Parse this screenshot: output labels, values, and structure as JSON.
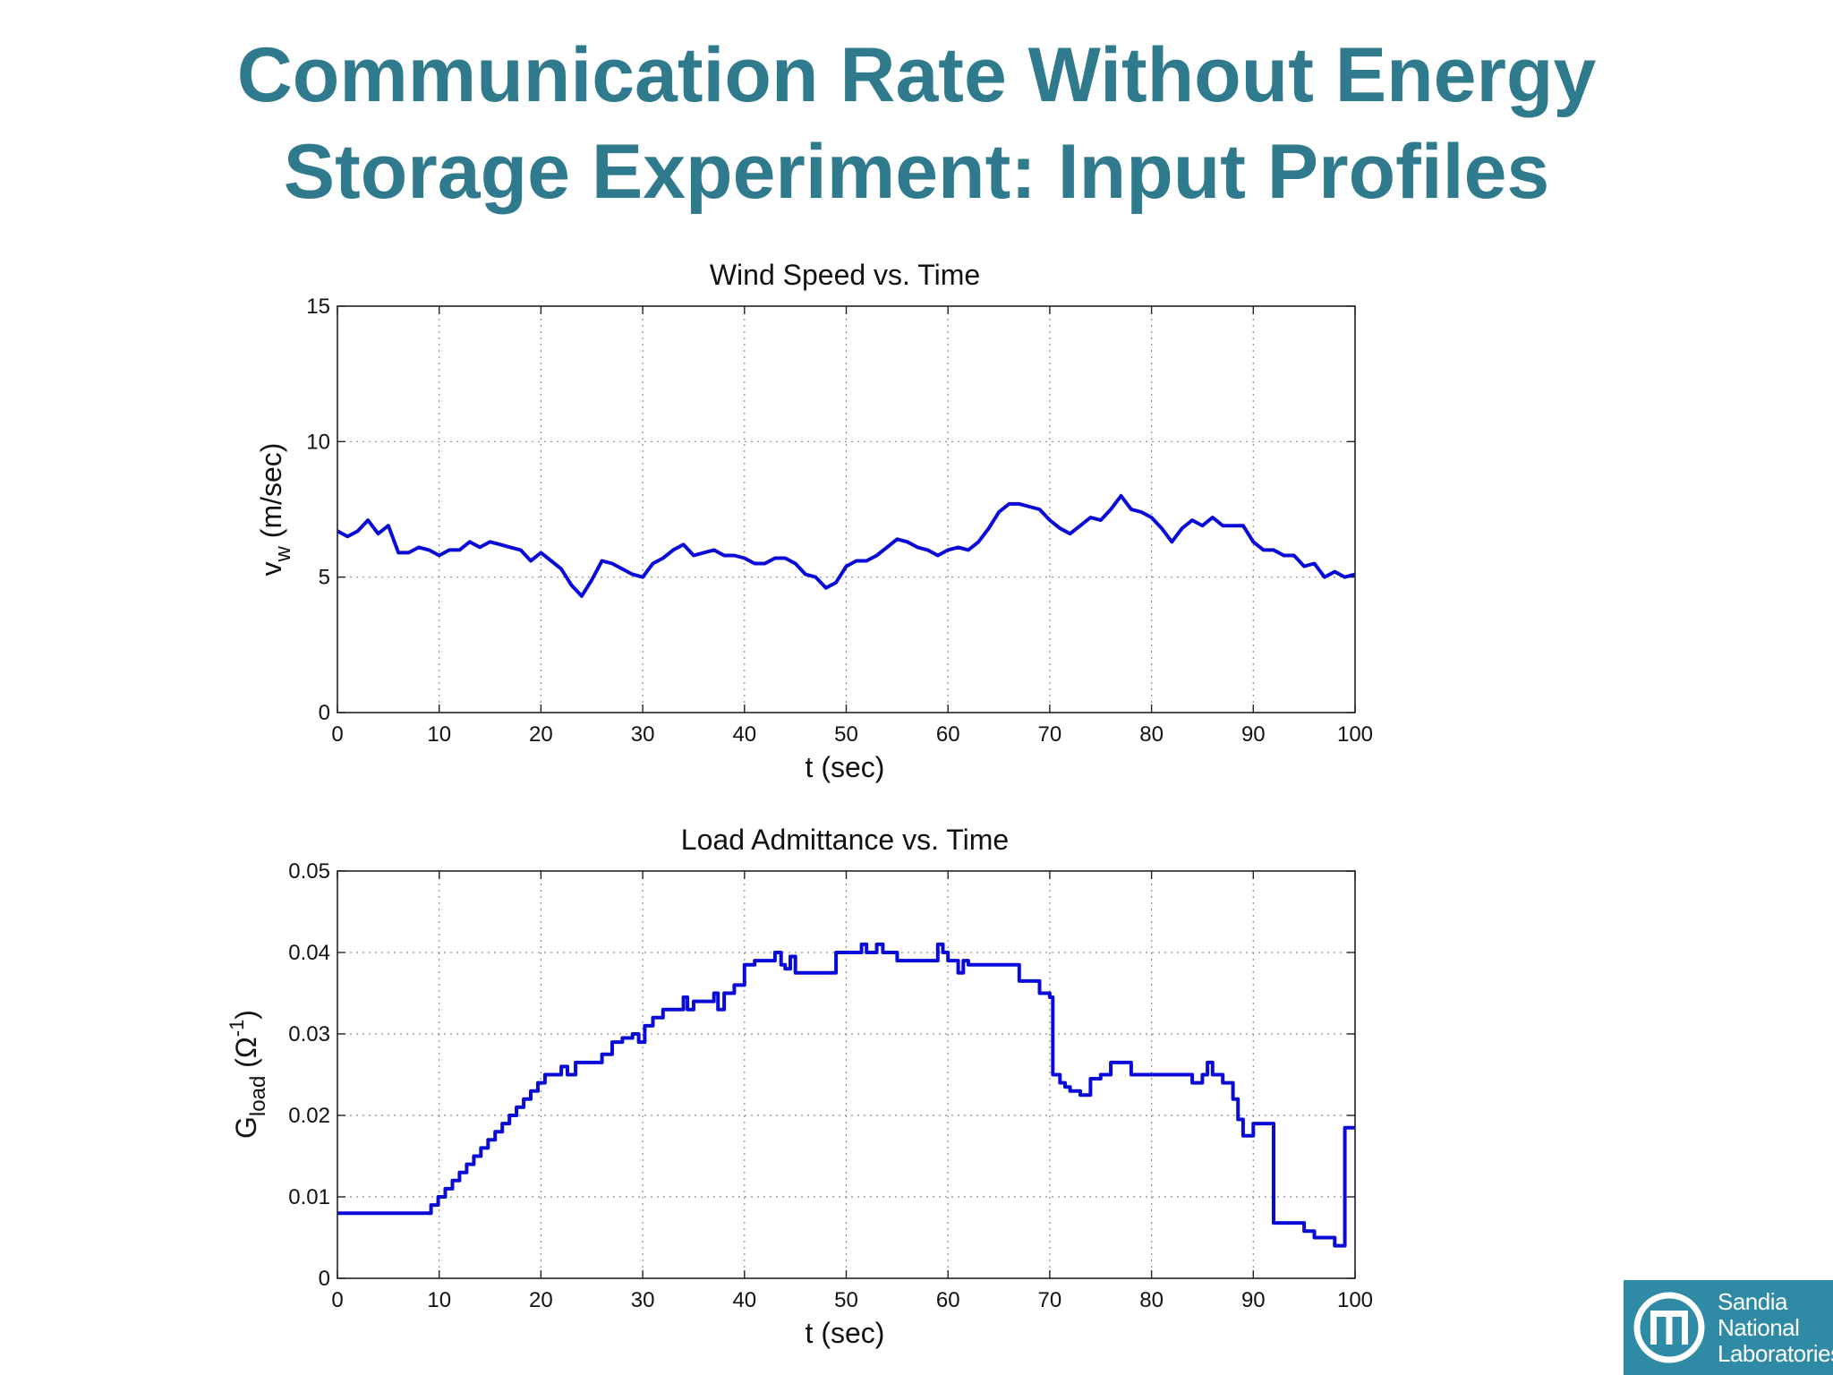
{
  "slide": {
    "title_line1": "Communication Rate Without Energy",
    "title_line2": "Storage Experiment: Input Profiles",
    "accent_color": "#2f7a8c"
  },
  "logo": {
    "line1": "Sandia",
    "line2": "National",
    "line3": "Laboratories",
    "background_color": "#2f8aa6"
  },
  "chart_data": [
    {
      "type": "line",
      "title": "Wind Speed vs. Time",
      "xlabel": "t (sec)",
      "ylabel_main": "v",
      "ylabel_sub": "w",
      "ylabel_units": " (m/sec)",
      "xlim": [
        0,
        100
      ],
      "ylim": [
        0,
        15
      ],
      "xticks": [
        "0",
        "10",
        "20",
        "30",
        "40",
        "50",
        "60",
        "70",
        "80",
        "90",
        "100"
      ],
      "yticks": [
        "0",
        "5",
        "10",
        "15"
      ],
      "grid": true,
      "line_color": "#0a0ad8",
      "series": [
        {
          "x": [
            0,
            1,
            2,
            3,
            4,
            5,
            6,
            7,
            8,
            9,
            10,
            11,
            12,
            13,
            14,
            15,
            16,
            17,
            18,
            19,
            20,
            21,
            22,
            23,
            24,
            25,
            26,
            27,
            28,
            29,
            30,
            31,
            32,
            33,
            34,
            35,
            36,
            37,
            38,
            39,
            40,
            41,
            42,
            43,
            44,
            45,
            46,
            47,
            48,
            49,
            50,
            51,
            52,
            53,
            54,
            55,
            56,
            57,
            58,
            59,
            60,
            61,
            62,
            63,
            64,
            65,
            66,
            67,
            68,
            69,
            70,
            71,
            72,
            73,
            74,
            75,
            76,
            77,
            78,
            79,
            80,
            81,
            82,
            83,
            84,
            85,
            86,
            87,
            88,
            89,
            90,
            91,
            92,
            93,
            94,
            95,
            96,
            97,
            98,
            99,
            100
          ],
          "values": [
            6.7,
            6.5,
            6.7,
            7.1,
            6.6,
            6.9,
            5.9,
            5.9,
            6.1,
            6.0,
            5.8,
            6.0,
            6.0,
            6.3,
            6.1,
            6.3,
            6.2,
            6.1,
            6.0,
            5.6,
            5.9,
            5.6,
            5.3,
            4.7,
            4.3,
            4.9,
            5.6,
            5.5,
            5.3,
            5.1,
            5.0,
            5.5,
            5.7,
            6.0,
            6.2,
            5.8,
            5.9,
            6.0,
            5.8,
            5.8,
            5.7,
            5.5,
            5.5,
            5.7,
            5.7,
            5.5,
            5.1,
            5.0,
            4.6,
            4.8,
            5.4,
            5.6,
            5.6,
            5.8,
            6.1,
            6.4,
            6.3,
            6.1,
            6.0,
            5.8,
            6.0,
            6.1,
            6.0,
            6.3,
            6.8,
            7.4,
            7.7,
            7.7,
            7.6,
            7.5,
            7.1,
            6.8,
            6.6,
            6.9,
            7.2,
            7.1,
            7.5,
            8.0,
            7.5,
            7.4,
            7.2,
            6.8,
            6.3,
            6.8,
            7.1,
            6.9,
            7.2,
            6.9,
            6.9,
            6.9,
            6.3,
            6.0,
            6.0,
            5.8,
            5.8,
            5.4,
            5.5,
            5.0,
            5.2,
            5.0,
            5.1
          ]
        }
      ]
    },
    {
      "type": "line",
      "title": "Load Admittance vs. Time",
      "xlabel": "t (sec)",
      "ylabel_main": "G",
      "ylabel_sub": "load",
      "ylabel_units_open": " (Ω",
      "ylabel_sup": "-1",
      "ylabel_units_close": ")",
      "xlim": [
        0,
        100
      ],
      "ylim": [
        0,
        0.05
      ],
      "xticks": [
        "0",
        "10",
        "20",
        "30",
        "40",
        "50",
        "60",
        "70",
        "80",
        "90",
        "100"
      ],
      "yticks": [
        "0",
        "0.01",
        "0.02",
        "0.03",
        "0.04",
        "0.05"
      ],
      "grid": true,
      "line_color": "#0a0ad8",
      "step": true,
      "series": [
        {
          "x": [
            0,
            9.2,
            9.9,
            10.6,
            11.3,
            12.0,
            12.7,
            13.4,
            14.1,
            14.8,
            15.5,
            16.2,
            16.9,
            17.6,
            18.3,
            19.0,
            19.7,
            20.4,
            22.0,
            22.6,
            23.4,
            26.0,
            27.0,
            28.0,
            29.0,
            29.6,
            30.2,
            31.0,
            32.0,
            34.0,
            34.4,
            35.0,
            37.0,
            37.4,
            38.0,
            39.0,
            40.0,
            41.0,
            43.0,
            43.6,
            44.0,
            44.5,
            45.0,
            46.0,
            49.0,
            51.5,
            52.0,
            53.0,
            53.6,
            55.0,
            56.0,
            59.0,
            59.5,
            60.0,
            61.0,
            61.5,
            62.0,
            66.0,
            67.0,
            69.0,
            70.0,
            70.3,
            71.0,
            71.5,
            72.0,
            73.0,
            74.0,
            75.0,
            76.0,
            78.0,
            80.0,
            81.0,
            82.0,
            84.0,
            85.0,
            85.5,
            86.0,
            87.0,
            88.0,
            88.5,
            89.0,
            90.0,
            92.0,
            95.0,
            96.0,
            98.0,
            99.0
          ],
          "values": [
            0.008,
            0.009,
            0.01,
            0.011,
            0.012,
            0.013,
            0.014,
            0.015,
            0.016,
            0.017,
            0.018,
            0.019,
            0.02,
            0.021,
            0.022,
            0.023,
            0.024,
            0.025,
            0.026,
            0.025,
            0.0265,
            0.0275,
            0.029,
            0.0295,
            0.03,
            0.029,
            0.031,
            0.032,
            0.033,
            0.0345,
            0.033,
            0.034,
            0.035,
            0.033,
            0.035,
            0.036,
            0.0385,
            0.039,
            0.04,
            0.0385,
            0.038,
            0.0395,
            0.0375,
            0.0375,
            0.04,
            0.041,
            0.04,
            0.041,
            0.04,
            0.039,
            0.039,
            0.041,
            0.04,
            0.039,
            0.0375,
            0.039,
            0.0385,
            0.0385,
            0.0365,
            0.035,
            0.0345,
            0.025,
            0.024,
            0.0235,
            0.023,
            0.0225,
            0.0245,
            0.025,
            0.0265,
            0.025,
            0.025,
            0.025,
            0.025,
            0.024,
            0.025,
            0.0265,
            0.025,
            0.024,
            0.022,
            0.0195,
            0.0175,
            0.019,
            0.0068,
            0.0058,
            0.005,
            0.004,
            0.0185
          ]
        }
      ]
    }
  ]
}
